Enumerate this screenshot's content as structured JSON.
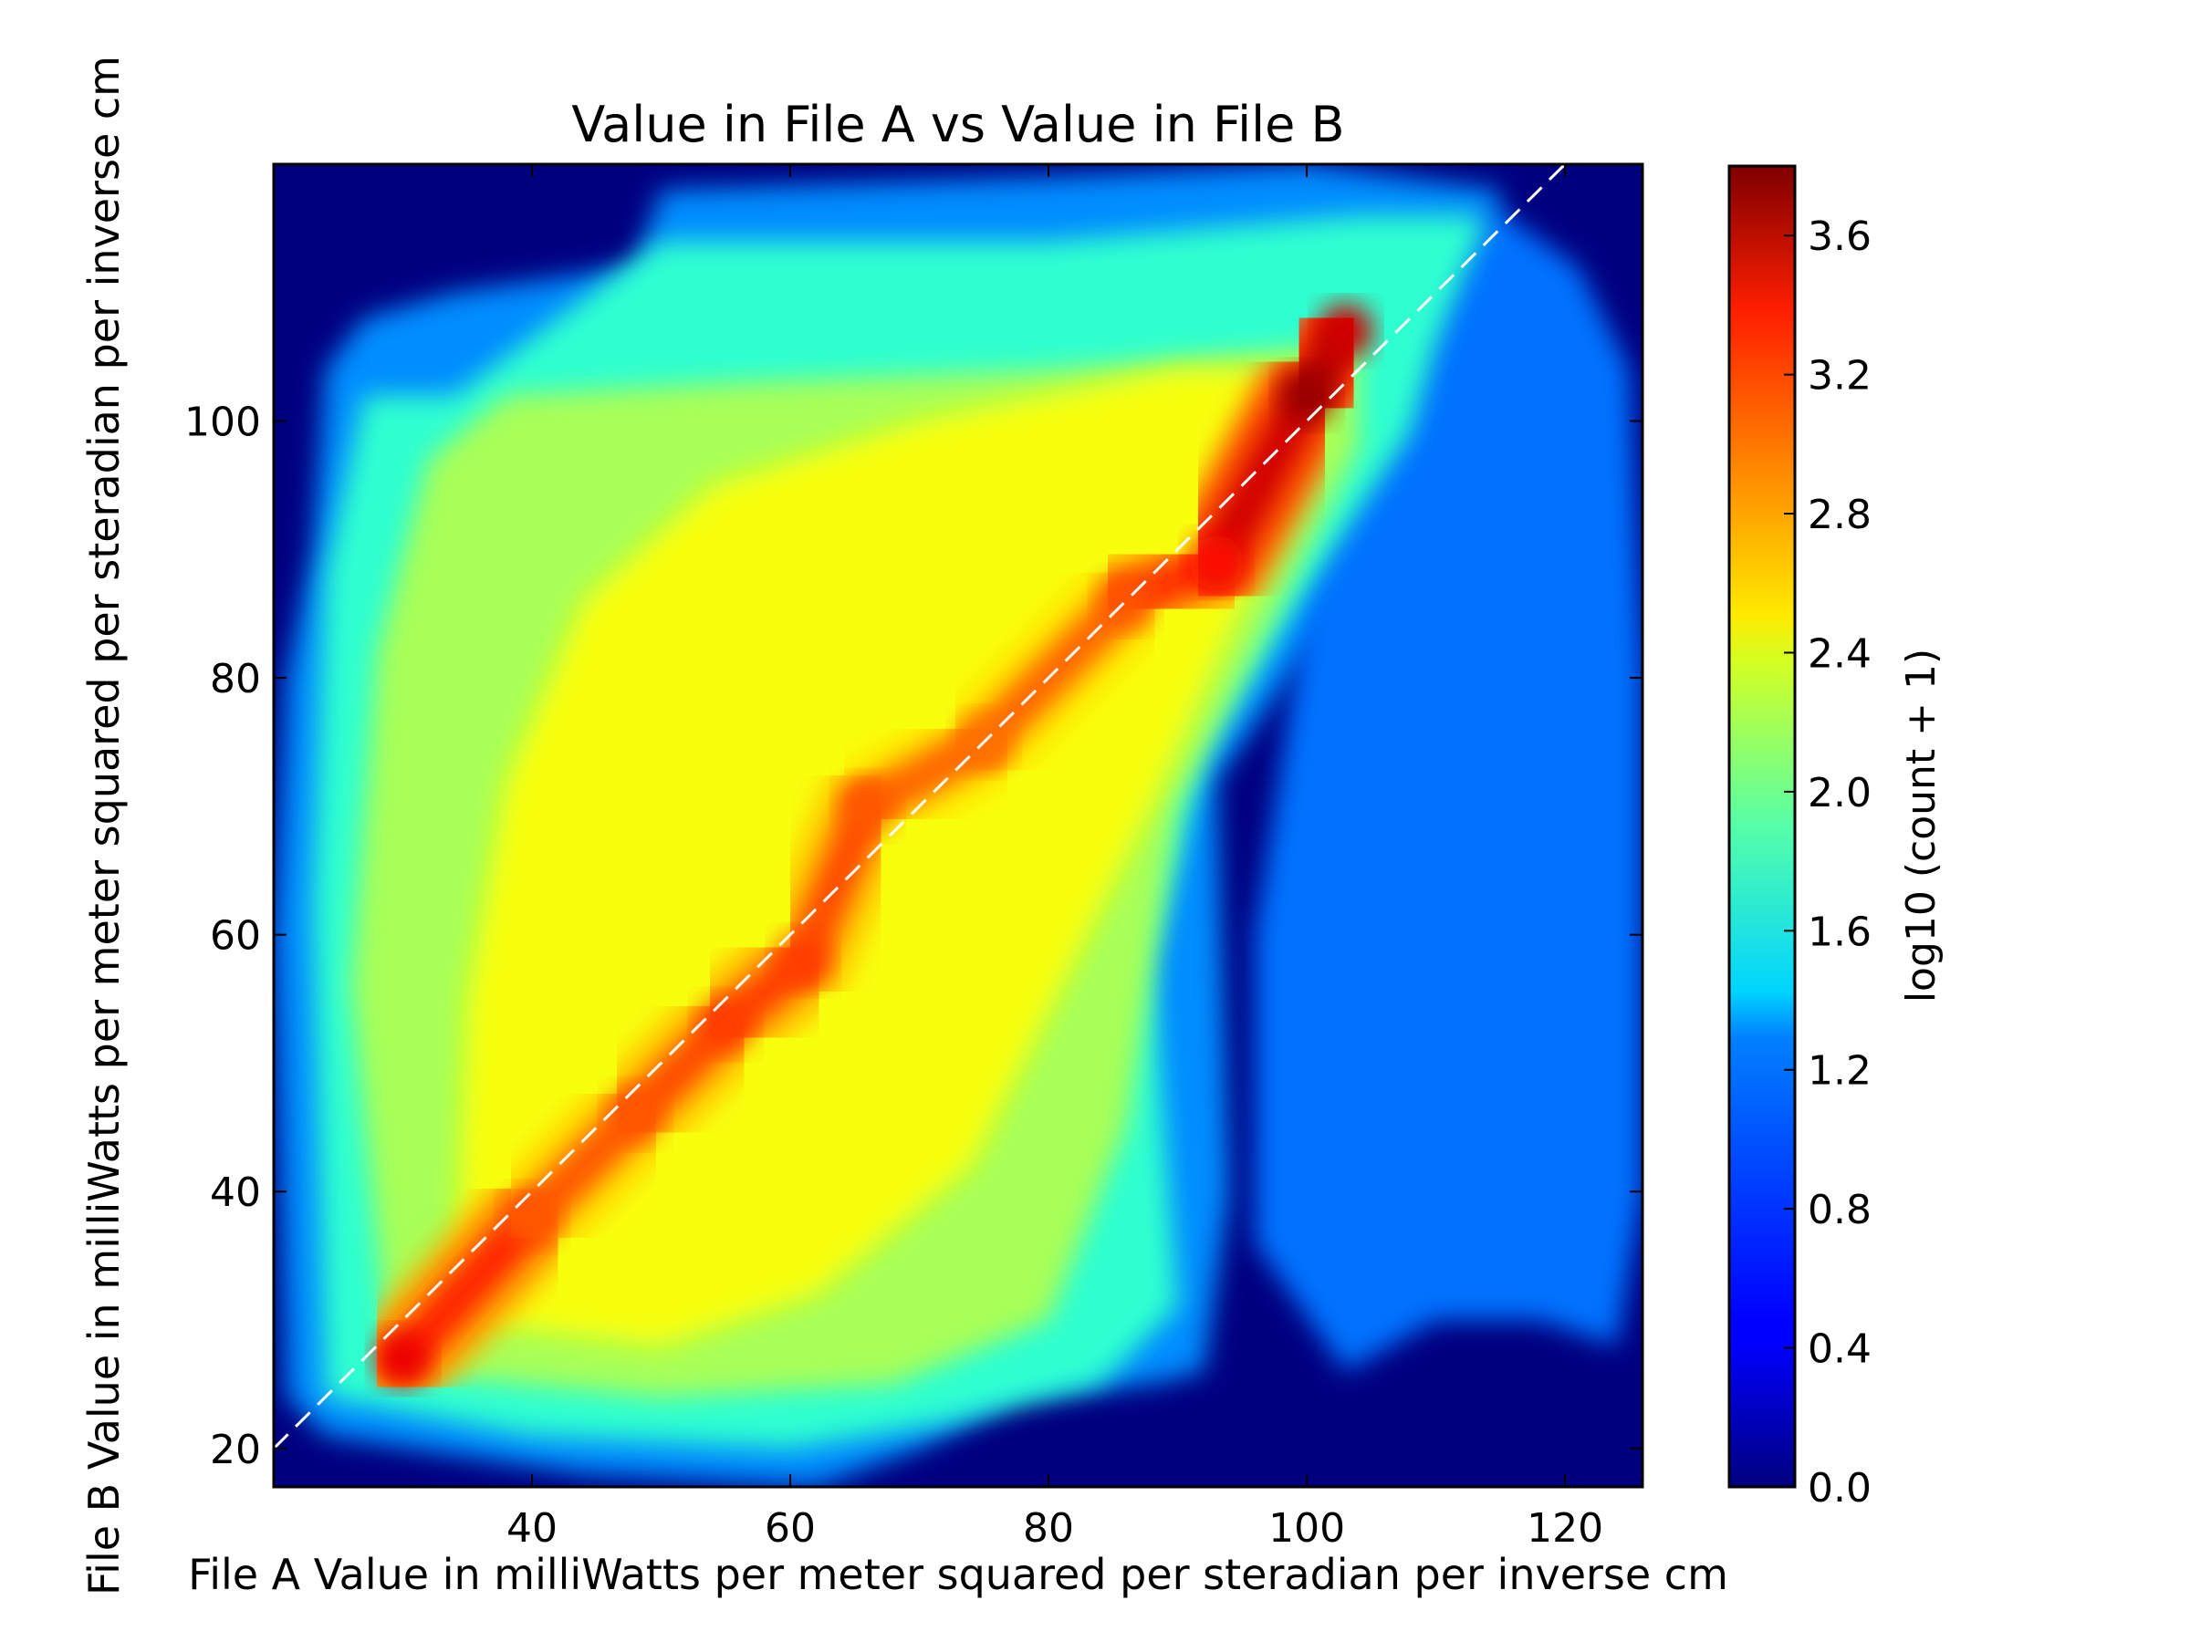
{
  "chart_data": {
    "type": "heatmap",
    "title": "Value in File A vs Value in File B",
    "xlabel": "File A Value in milliWatts per meter squared per steradian per inverse cm",
    "ylabel": "File B Value in milliWatts per meter squared per steradian per inverse cm",
    "xlim": [
      20,
      126
    ],
    "ylim": [
      17,
      120
    ],
    "x_ticks": [
      40,
      60,
      80,
      100,
      120
    ],
    "y_ticks": [
      20,
      40,
      60,
      80,
      100
    ],
    "colorbar": {
      "label": "log10 (count + 1)",
      "range": [
        0.0,
        3.8
      ],
      "ticks": [
        "0.0",
        "0.4",
        "0.8",
        "1.2",
        "1.6",
        "2.0",
        "2.4",
        "2.8",
        "3.2",
        "3.6"
      ],
      "colormap": "jet"
    },
    "reference_line": {
      "style": "dashed",
      "color": "#ffffff",
      "from": [
        20,
        20
      ],
      "to": [
        120,
        120
      ]
    },
    "density_ridge": [
      {
        "x": 30,
        "y": 27,
        "value": 3.4
      },
      {
        "x": 40,
        "y": 38,
        "value": 3.0
      },
      {
        "x": 48,
        "y": 46,
        "value": 3.0
      },
      {
        "x": 55,
        "y": 53,
        "value": 3.1
      },
      {
        "x": 61,
        "y": 58,
        "value": 3.1
      },
      {
        "x": 66,
        "y": 70,
        "value": 3.0
      },
      {
        "x": 75,
        "y": 75,
        "value": 2.9
      },
      {
        "x": 86,
        "y": 86,
        "value": 3.0
      },
      {
        "x": 93,
        "y": 89,
        "value": 3.3
      },
      {
        "x": 100,
        "y": 102,
        "value": 3.7
      },
      {
        "x": 103,
        "y": 107,
        "value": 3.5
      }
    ],
    "colors": {
      "background": "#00007f",
      "frame": "#000000"
    }
  }
}
